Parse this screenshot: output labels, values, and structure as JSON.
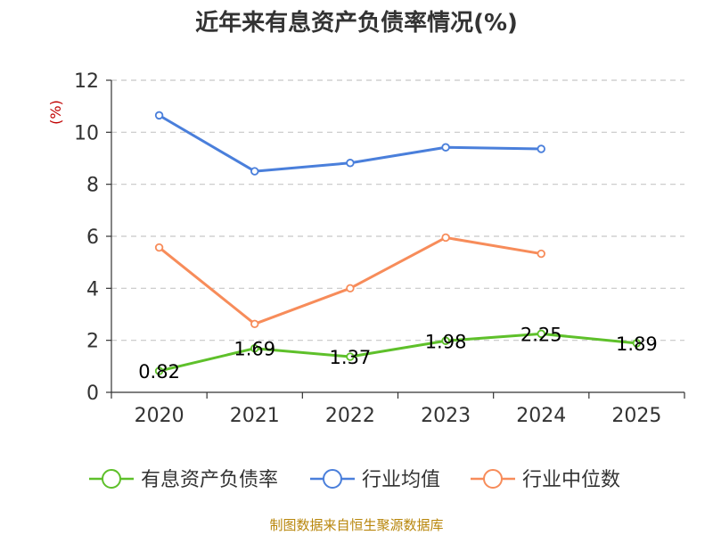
{
  "chart_data": {
    "type": "line",
    "title": "近年来有息资产负债率情况(%)",
    "ylabel": "(%)",
    "xlabel": "",
    "categories": [
      "2020",
      "2021",
      "2022",
      "2023",
      "2024",
      "2025"
    ],
    "ylim": [
      0,
      12
    ],
    "yticks": [
      0,
      2,
      4,
      6,
      8,
      10,
      12
    ],
    "grid": true,
    "legend_position": "bottom",
    "series": [
      {
        "name": "有息资产负债率",
        "color": "#5ec02a",
        "values": [
          0.82,
          1.69,
          1.37,
          1.98,
          2.25,
          1.89
        ],
        "labels": [
          "0.82",
          "1.69",
          "1.37",
          "1.98",
          "2.25",
          "1.89"
        ],
        "show_labels": true
      },
      {
        "name": "行业均值",
        "color": "#4a7fdb",
        "values": [
          10.65,
          8.5,
          8.82,
          9.42,
          9.36,
          null
        ],
        "show_labels": false
      },
      {
        "name": "行业中位数",
        "color": "#f78c5a",
        "values": [
          5.57,
          2.63,
          4.0,
          5.95,
          5.33,
          null
        ],
        "show_labels": false
      }
    ]
  },
  "footer": {
    "source": "制图数据来自恒生聚源数据库"
  }
}
